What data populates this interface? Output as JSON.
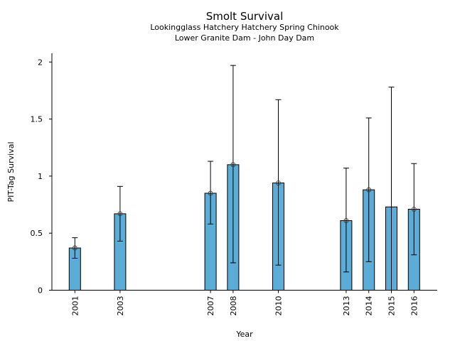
{
  "chart_data": {
    "type": "bar",
    "title": "Smolt Survival",
    "subtitle_lines": [
      "Lookingglass Hatchery Hatchery Spring Chinook",
      "Lower Granite Dam - John Day Dam"
    ],
    "xlabel": "Year",
    "ylabel": "PIT-Tag Survival",
    "ylim": [
      0,
      2.05
    ],
    "yticks": [
      0,
      0.5,
      1,
      1.5,
      2
    ],
    "ytick_labels": [
      "0",
      "0.5",
      "1",
      "1.5",
      "2"
    ],
    "xlim": [
      2000.5,
      2017.0
    ],
    "grid": false,
    "bar_color": "#5bacd6",
    "categories": [
      "2001",
      "2003",
      "2007",
      "2008",
      "2010",
      "2013",
      "2014",
      "2015",
      "2016"
    ],
    "x": [
      2001,
      2003,
      2007,
      2008,
      2010,
      2013,
      2014,
      2015,
      2016
    ],
    "values": [
      0.37,
      0.67,
      0.85,
      1.1,
      0.94,
      0.61,
      0.88,
      0.73,
      0.71
    ],
    "error_lower": [
      0.28,
      0.43,
      0.58,
      0.24,
      0.22,
      0.16,
      0.25,
      0.0,
      0.31
    ],
    "error_upper": [
      0.46,
      0.91,
      1.13,
      1.97,
      1.67,
      1.07,
      1.51,
      1.78,
      1.11
    ],
    "point_markers": [
      true,
      true,
      true,
      true,
      true,
      true,
      true,
      false,
      true
    ]
  }
}
